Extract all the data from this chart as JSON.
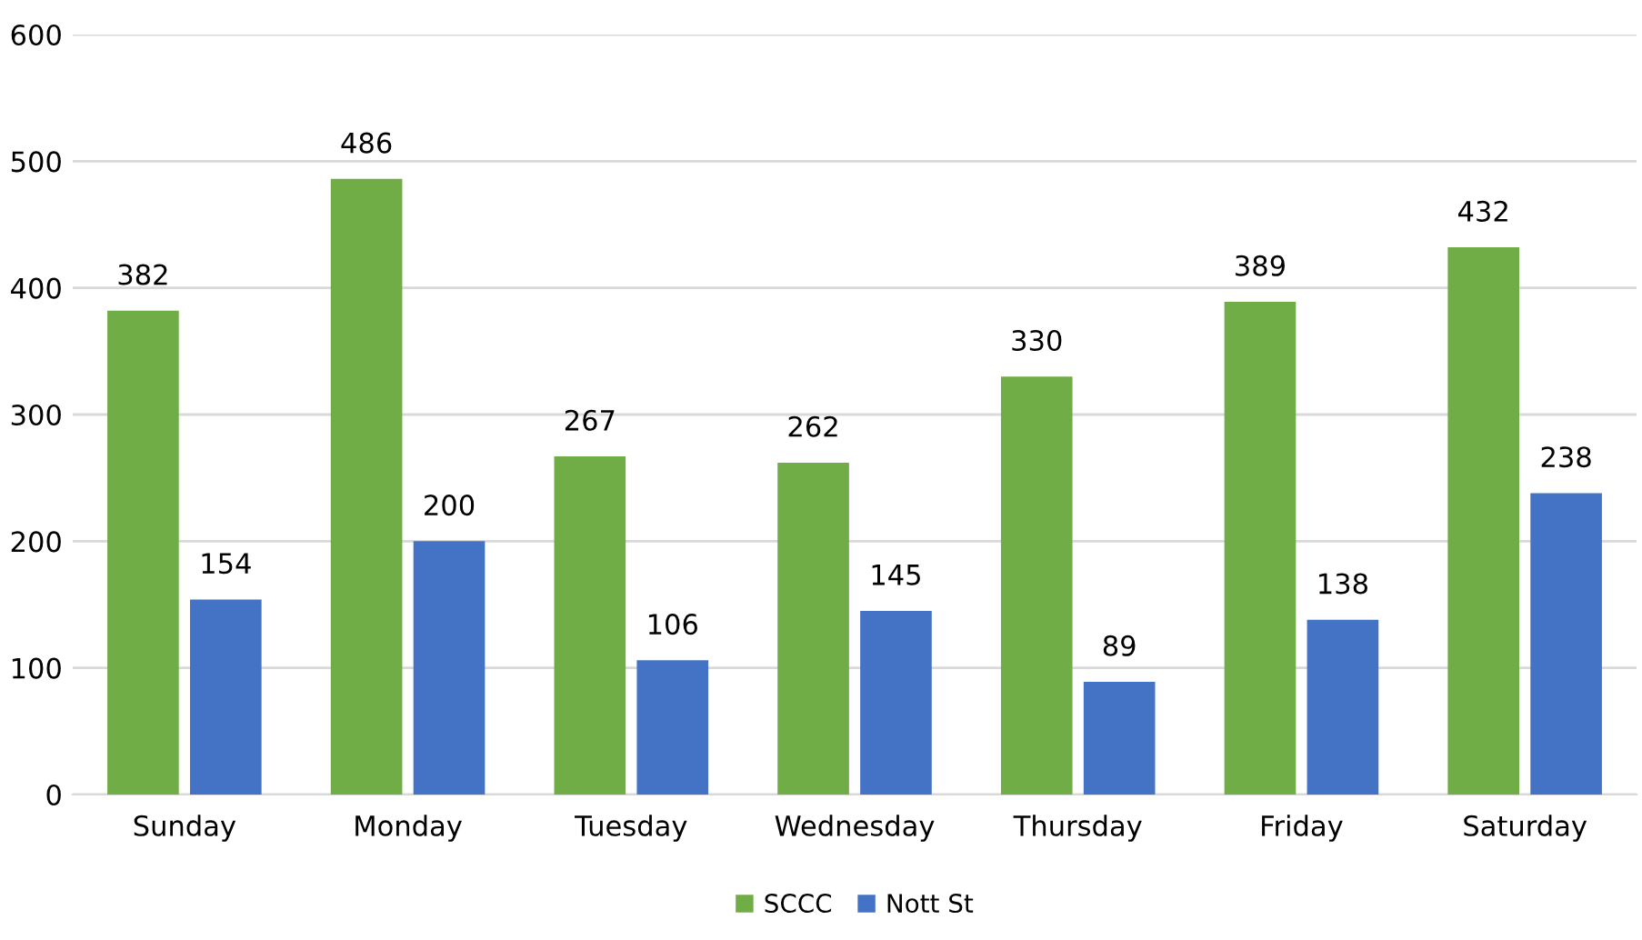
{
  "chart_data": {
    "type": "bar",
    "categories": [
      "Sunday",
      "Monday",
      "Tuesday",
      "Wednesday",
      "Thursday",
      "Friday",
      "Saturday"
    ],
    "series": [
      {
        "name": "SCCC",
        "color": "#70ad47",
        "values": [
          382,
          486,
          267,
          262,
          330,
          389,
          432
        ]
      },
      {
        "name": "Nott St",
        "color": "#4472c4",
        "values": [
          154,
          200,
          106,
          145,
          89,
          138,
          238
        ]
      }
    ],
    "ylim": [
      0,
      600
    ],
    "yticks": [
      0,
      100,
      200,
      300,
      400,
      500,
      600
    ],
    "grid": "y",
    "legend": "bottom",
    "data_labels": true
  }
}
